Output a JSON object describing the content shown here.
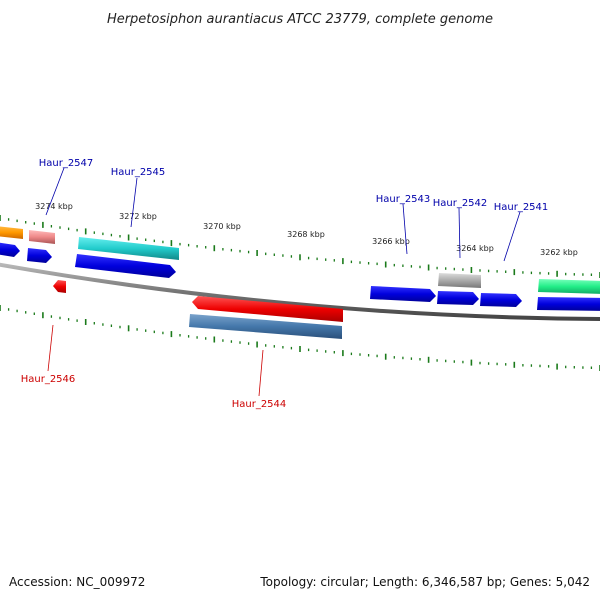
{
  "title": "Herpetosiphon aurantiacus ATCC 23779, complete genome",
  "footer": {
    "accession": "Accession: NC_009972",
    "summary": "Topology: circular; Length: 6,346,587 bp; Genes: 5,042"
  },
  "colors": {
    "forward_label": "#0000aa",
    "reverse_label": "#cc0000",
    "tick": "#1a7a1a",
    "backbone": "#777777"
  },
  "scale_labels": [
    "3274 kbp",
    "3272 kbp",
    "3270 kbp",
    "3268 kbp",
    "3266 kbp",
    "3264 kbp",
    "3262 kbp"
  ],
  "genes": [
    {
      "label": "Haur_2547",
      "strand": "forward",
      "color": "#ee8888"
    },
    {
      "label": "Haur_2545",
      "strand": "forward",
      "color": "#22cccc"
    },
    {
      "label": "Haur_2543",
      "strand": "forward",
      "color": "#0000dd"
    },
    {
      "label": "Haur_2542",
      "strand": "forward",
      "color": "#aaaaaa"
    },
    {
      "label": "Haur_2541",
      "strand": "forward",
      "color": "#0000dd"
    },
    {
      "label": "Haur_2546",
      "strand": "reverse",
      "color": "#ee0000"
    },
    {
      "label": "Haur_2544",
      "strand": "reverse",
      "color": "#ee0000"
    }
  ]
}
